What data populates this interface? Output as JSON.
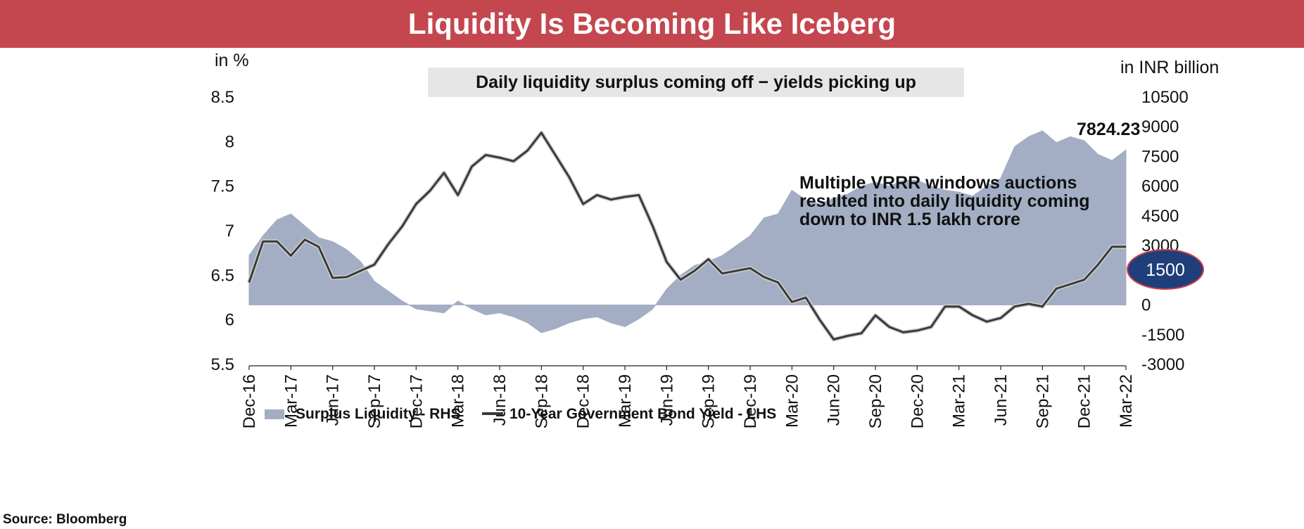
{
  "title": "Liquidity Is Becoming Like Iceberg",
  "source": "Source: Bloomberg",
  "chart_data": {
    "type": "area+line",
    "subtitle": "Daily liquidity surplus coming off − yields picking up",
    "left_axis_unit": "in %",
    "right_axis_unit": "in INR billion",
    "left_ylim": [
      5.5,
      8.5
    ],
    "right_ylim": [
      -3000,
      10500
    ],
    "left_ticks": [
      "8.5",
      "8",
      "7.5",
      "7",
      "6.5",
      "6",
      "5.5"
    ],
    "right_ticks": [
      "10500",
      "9000",
      "7500",
      "6000",
      "4500",
      "3000",
      "1500",
      "0",
      "-1500",
      "-3000"
    ],
    "x_ticks": [
      "Dec-16",
      "Mar-17",
      "Jun-17",
      "Sep-17",
      "Dec-17",
      "Mar-18",
      "Jun-18",
      "Sep-18",
      "Dec-18",
      "Mar-19",
      "Jun-19",
      "Sep-19",
      "Dec-19",
      "Mar-20",
      "Jun-20",
      "Sep-20",
      "Dec-20",
      "Mar-21",
      "Jun-21",
      "Sep-21",
      "Dec-21",
      "Mar-22"
    ],
    "series": [
      {
        "name": "Surplus Liquidity - RHS",
        "axis": "right",
        "kind": "area",
        "color": "#a3aec4",
        "x": [
          "Dec-16",
          "Jan-17",
          "Feb-17",
          "Mar-17",
          "Apr-17",
          "May-17",
          "Jun-17",
          "Jul-17",
          "Aug-17",
          "Sep-17",
          "Oct-17",
          "Nov-17",
          "Dec-17",
          "Jan-18",
          "Feb-18",
          "Mar-18",
          "Apr-18",
          "May-18",
          "Jun-18",
          "Jul-18",
          "Aug-18",
          "Sep-18",
          "Oct-18",
          "Nov-18",
          "Dec-18",
          "Jan-19",
          "Feb-19",
          "Mar-19",
          "Apr-19",
          "May-19",
          "Jun-19",
          "Jul-19",
          "Aug-19",
          "Sep-19",
          "Oct-19",
          "Nov-19",
          "Dec-19",
          "Jan-20",
          "Feb-20",
          "Mar-20",
          "Apr-20",
          "May-20",
          "Jun-20",
          "Jul-20",
          "Aug-20",
          "Sep-20",
          "Oct-20",
          "Nov-20",
          "Dec-20",
          "Jan-21",
          "Feb-21",
          "Mar-21",
          "Apr-21",
          "May-21",
          "Jun-21",
          "Jul-21",
          "Aug-21",
          "Sep-21",
          "Oct-21",
          "Nov-21",
          "Dec-21",
          "Jan-22",
          "Feb-22",
          "Mar-22"
        ],
        "values": [
          2500,
          3500,
          4300,
          4600,
          4000,
          3400,
          3200,
          2800,
          2200,
          1200,
          700,
          200,
          -200,
          -300,
          -400,
          200,
          -200,
          -500,
          -400,
          -600,
          -900,
          -1400,
          -1200,
          -900,
          -700,
          -600,
          -900,
          -1100,
          -700,
          -200,
          800,
          1500,
          2000,
          2200,
          2500,
          3000,
          3500,
          4400,
          4600,
          5800,
          5300,
          5100,
          5400,
          5600,
          6000,
          6200,
          6000,
          6300,
          6300,
          6000,
          5800,
          5700,
          5500,
          6000,
          6400,
          8000,
          8500,
          8800,
          8200,
          8500,
          8300,
          7600,
          7300,
          7824.23
        ]
      },
      {
        "name": "10-Year Government Bond Yield - LHS",
        "axis": "left",
        "kind": "line",
        "color": "#3a3a3a",
        "x": [
          "Dec-16",
          "Jan-17",
          "Feb-17",
          "Mar-17",
          "Apr-17",
          "May-17",
          "Jun-17",
          "Jul-17",
          "Aug-17",
          "Sep-17",
          "Oct-17",
          "Nov-17",
          "Dec-17",
          "Jan-18",
          "Feb-18",
          "Mar-18",
          "Apr-18",
          "May-18",
          "Jun-18",
          "Jul-18",
          "Aug-18",
          "Sep-18",
          "Oct-18",
          "Nov-18",
          "Dec-18",
          "Jan-19",
          "Feb-19",
          "Mar-19",
          "Apr-19",
          "May-19",
          "Jun-19",
          "Jul-19",
          "Aug-19",
          "Sep-19",
          "Oct-19",
          "Nov-19",
          "Dec-19",
          "Jan-20",
          "Feb-20",
          "Mar-20",
          "Apr-20",
          "May-20",
          "Jun-20",
          "Jul-20",
          "Aug-20",
          "Sep-20",
          "Oct-20",
          "Nov-20",
          "Dec-20",
          "Jan-21",
          "Feb-21",
          "Mar-21",
          "Apr-21",
          "May-21",
          "Jun-21",
          "Jul-21",
          "Aug-21",
          "Sep-21",
          "Oct-21",
          "Nov-21",
          "Dec-21",
          "Jan-22",
          "Feb-22",
          "Mar-22"
        ],
        "values": [
          6.42,
          6.88,
          6.88,
          6.72,
          6.9,
          6.82,
          6.47,
          6.48,
          6.55,
          6.62,
          6.85,
          7.05,
          7.3,
          7.45,
          7.65,
          7.4,
          7.72,
          7.85,
          7.82,
          7.78,
          7.9,
          8.1,
          7.85,
          7.6,
          7.3,
          7.4,
          7.35,
          7.38,
          7.4,
          7.05,
          6.65,
          6.45,
          6.55,
          6.68,
          6.52,
          6.55,
          6.58,
          6.48,
          6.42,
          6.2,
          6.25,
          6.0,
          5.78,
          5.82,
          5.85,
          6.05,
          5.92,
          5.86,
          5.88,
          5.92,
          6.15,
          6.15,
          6.05,
          5.98,
          6.02,
          6.15,
          6.18,
          6.15,
          6.35,
          6.4,
          6.45,
          6.62,
          6.82,
          6.82
        ]
      }
    ],
    "annotations": {
      "last_value_label": "7824.23",
      "note_lines": [
        "Multiple VRRR windows auctions",
        "resulted into daily liquidity coming",
        "down to INR 1.5 lakh crore"
      ],
      "callout": "1500"
    },
    "grid": false,
    "legend_position": "bottom-left"
  }
}
